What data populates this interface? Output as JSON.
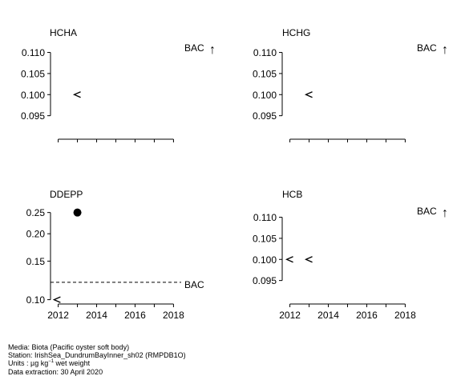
{
  "chart_data": [
    {
      "type": "scatter",
      "title": "HCHA",
      "xlim": [
        2011.6,
        2018.4
      ],
      "ylim": [
        0.09,
        0.112
      ],
      "y_ticks": [
        0.095,
        0.1,
        0.105,
        0.11
      ],
      "y_tick_labels": [
        "0.095",
        "0.100",
        "0.105",
        "0.110"
      ],
      "x_ticks": [
        2012,
        2013,
        2014,
        2015,
        2016,
        2017,
        2018
      ],
      "x_tick_labels": [],
      "points": [
        {
          "x": 2013,
          "y": 0.1,
          "marker": "<"
        }
      ],
      "bac_label": "BAC",
      "bac_arrow": "↑"
    },
    {
      "type": "scatter",
      "title": "HCHG",
      "xlim": [
        2011.6,
        2018.4
      ],
      "ylim": [
        0.09,
        0.112
      ],
      "y_ticks": [
        0.095,
        0.1,
        0.105,
        0.11
      ],
      "y_tick_labels": [
        "0.095",
        "0.100",
        "0.105",
        "0.110"
      ],
      "x_ticks": [
        2012,
        2013,
        2014,
        2015,
        2016,
        2017,
        2018
      ],
      "x_tick_labels": [],
      "points": [
        {
          "x": 2013,
          "y": 0.1,
          "marker": "<"
        }
      ],
      "bac_label": "BAC",
      "bac_arrow": "↑"
    },
    {
      "type": "scatter",
      "title": "DDEPP",
      "xlim": [
        2011.6,
        2018.4
      ],
      "ylim": [
        0.098,
        0.26
      ],
      "y_scale": "log",
      "y_ticks": [
        0.1,
        0.15,
        0.2,
        0.25
      ],
      "y_tick_labels": [
        "0.10",
        "0.15",
        "0.20",
        "0.25"
      ],
      "x_ticks": [
        2012,
        2013,
        2014,
        2015,
        2016,
        2017,
        2018
      ],
      "x_tick_labels": [
        "2012",
        "2014",
        "2016",
        "2018"
      ],
      "x_tick_label_values": [
        2012,
        2014,
        2016,
        2018
      ],
      "points": [
        {
          "x": 2011.95,
          "y": 0.1,
          "marker": "<"
        },
        {
          "x": 2013,
          "y": 0.25,
          "marker": "filled-circle"
        }
      ],
      "bac_label": "BAC",
      "bac_value": 0.12
    },
    {
      "type": "scatter",
      "title": "HCB",
      "xlim": [
        2011.6,
        2018.4
      ],
      "ylim": [
        0.09,
        0.112
      ],
      "y_ticks": [
        0.095,
        0.1,
        0.105,
        0.11
      ],
      "y_tick_labels": [
        "0.095",
        "0.100",
        "0.105",
        "0.110"
      ],
      "x_ticks": [
        2012,
        2013,
        2014,
        2015,
        2016,
        2017,
        2018
      ],
      "x_tick_labels": [
        "2012",
        "2014",
        "2016",
        "2018"
      ],
      "x_tick_label_values": [
        2012,
        2014,
        2016,
        2018
      ],
      "points": [
        {
          "x": 2012,
          "y": 0.1,
          "marker": "<"
        },
        {
          "x": 2013,
          "y": 0.1,
          "marker": "<"
        }
      ],
      "bac_label": "BAC",
      "bac_arrow": "↑"
    }
  ],
  "meta": {
    "media": "Media: Biota (Pacific oyster soft body)",
    "station": "Station: IrishSea_DundrumBayInner_sh02 (RMPDB1O)",
    "units_prefix": "Units :  µg kg",
    "units_exp": "−1",
    "units_suffix": " wet weight",
    "extraction": "Data extraction: 30 April 2020"
  }
}
